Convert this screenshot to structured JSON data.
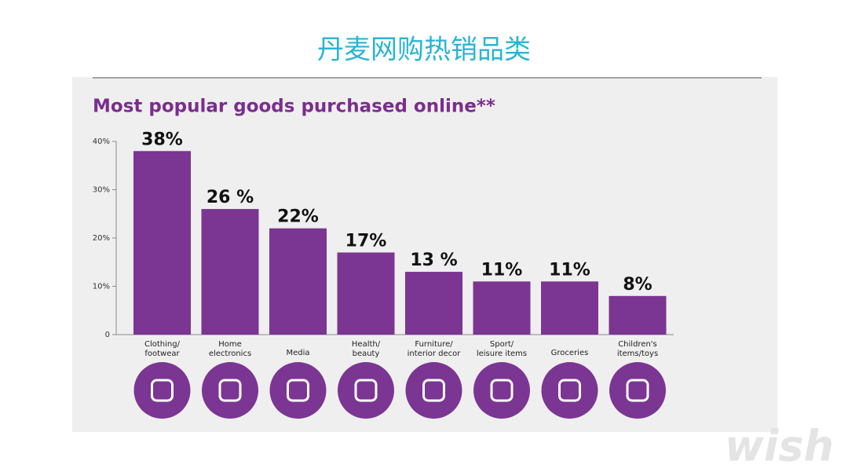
{
  "slide_title": "丹麦网购热销品类",
  "watermark": "wish",
  "chart_data": {
    "type": "bar",
    "title": "Most popular goods purchased online**",
    "categories": [
      "Clothing/\nfootwear",
      "Home\nelectronics",
      "Media",
      "Health/\nbeauty",
      "Furniture/\ninterior decor",
      "Sport/\nleisure items",
      "Groceries",
      "Children's\nitems/toys"
    ],
    "values": [
      38,
      26,
      22,
      17,
      13,
      11,
      11,
      8
    ],
    "value_labels": [
      "38%",
      "26 %",
      "22%",
      "17%",
      "13 %",
      "11%",
      "11%",
      "8%"
    ],
    "color": "#7b3592",
    "ylim": [
      0,
      40
    ],
    "yticks": [
      0,
      {
        "value": 10,
        "label": "10%"
      },
      {
        "value": 20,
        "label": "20%"
      },
      {
        "value": 30,
        "label": "30%"
      },
      {
        "value": 40,
        "label": "40%"
      }
    ],
    "grid": false
  }
}
